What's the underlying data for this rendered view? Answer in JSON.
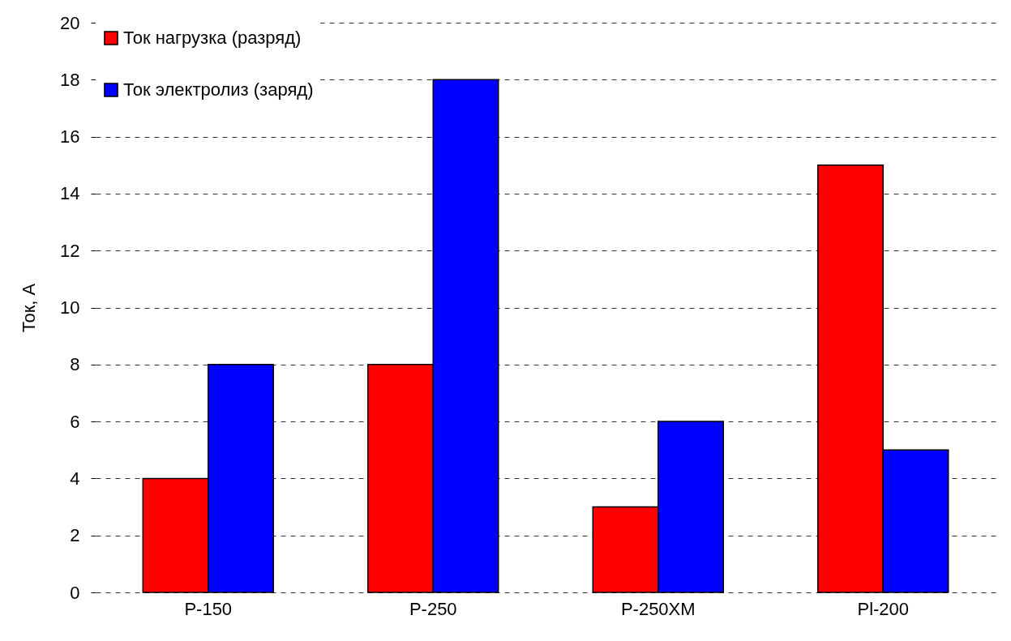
{
  "chart_data": {
    "type": "bar",
    "ylabel": "Ток, А",
    "categories": [
      "P-150",
      "P-250",
      "P-250XM",
      "Pl-200"
    ],
    "series": [
      {
        "name": "Ток нагрузка (разряд)",
        "color": "#ff0000",
        "values": [
          4,
          8,
          3,
          15
        ]
      },
      {
        "name": "Ток электролиз (заряд)",
        "color": "#0000ff",
        "values": [
          8,
          18,
          6,
          5
        ]
      }
    ],
    "ylim": [
      0,
      20
    ],
    "yticks": [
      0,
      2,
      4,
      6,
      8,
      10,
      12,
      14,
      16,
      18,
      20
    ],
    "grid": "y",
    "legend": "top left"
  }
}
